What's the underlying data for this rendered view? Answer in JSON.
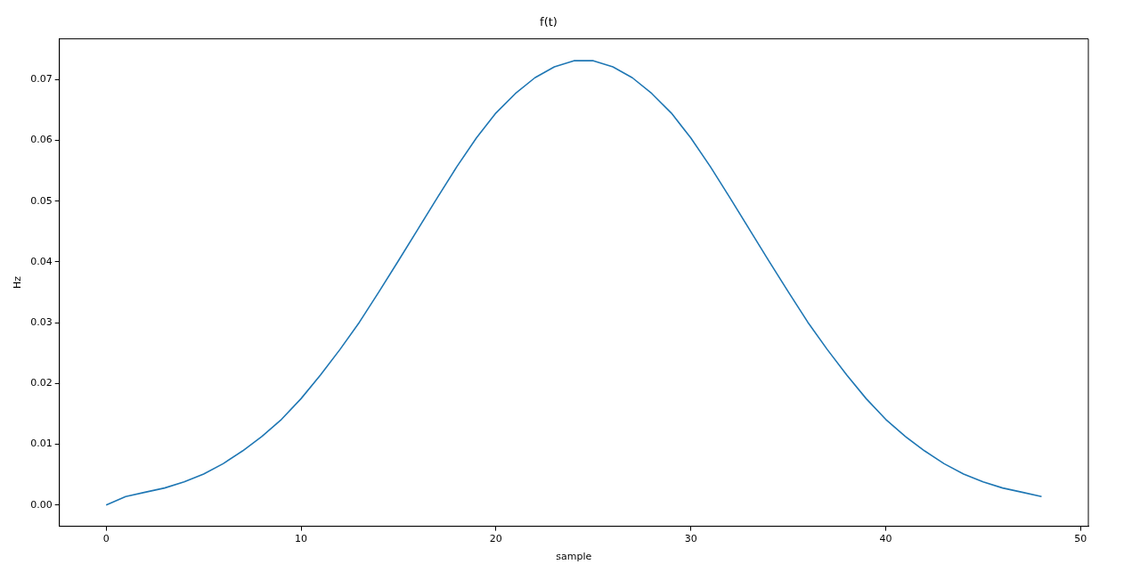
{
  "chart_data": {
    "type": "line",
    "title": "f(t)",
    "xlabel": "sample",
    "ylabel": "Hz",
    "x": [
      0,
      1,
      2,
      3,
      4,
      5,
      6,
      7,
      8,
      9,
      10,
      11,
      12,
      13,
      14,
      15,
      16,
      17,
      18,
      19,
      20,
      21,
      22,
      23,
      24,
      25,
      26,
      27,
      28,
      29,
      30,
      31,
      32,
      33,
      34,
      35,
      36,
      37,
      38,
      39,
      40,
      41,
      42,
      43,
      44,
      45,
      46,
      47,
      48
    ],
    "series": [
      {
        "color": "#1f77b4",
        "values": [
          0,
          0.0014,
          0.0021,
          0.0028,
          0.0038,
          0.0051,
          0.0068,
          0.0089,
          0.0113,
          0.0141,
          0.0175,
          0.0214,
          0.0256,
          0.0301,
          0.0351,
          0.0402,
          0.0454,
          0.0506,
          0.0557,
          0.0604,
          0.0645,
          0.0677,
          0.0703,
          0.0721,
          0.0731,
          0.0731,
          0.0721,
          0.0703,
          0.0677,
          0.0645,
          0.0604,
          0.0557,
          0.0506,
          0.0454,
          0.0402,
          0.0351,
          0.0301,
          0.0256,
          0.0214,
          0.0175,
          0.0141,
          0.0113,
          0.0089,
          0.0068,
          0.0051,
          0.0038,
          0.0028,
          0.0021,
          0.0014
        ]
      }
    ],
    "xlim": [
      -2.4,
      50.4
    ],
    "ylim": [
      -0.0035,
      0.0767
    ],
    "xticks": [
      0,
      10,
      20,
      30,
      40,
      50
    ],
    "yticks": [
      {
        "value": 0,
        "label": "0.00"
      },
      {
        "value": 0.01,
        "label": "0.01"
      },
      {
        "value": 0.02,
        "label": "0.02"
      },
      {
        "value": 0.03,
        "label": "0.03"
      },
      {
        "value": 0.04,
        "label": "0.04"
      },
      {
        "value": 0.05,
        "label": "0.05"
      },
      {
        "value": 0.06,
        "label": "0.06"
      },
      {
        "value": 0.07,
        "label": "0.07"
      }
    ],
    "grid": false,
    "legend": false
  }
}
